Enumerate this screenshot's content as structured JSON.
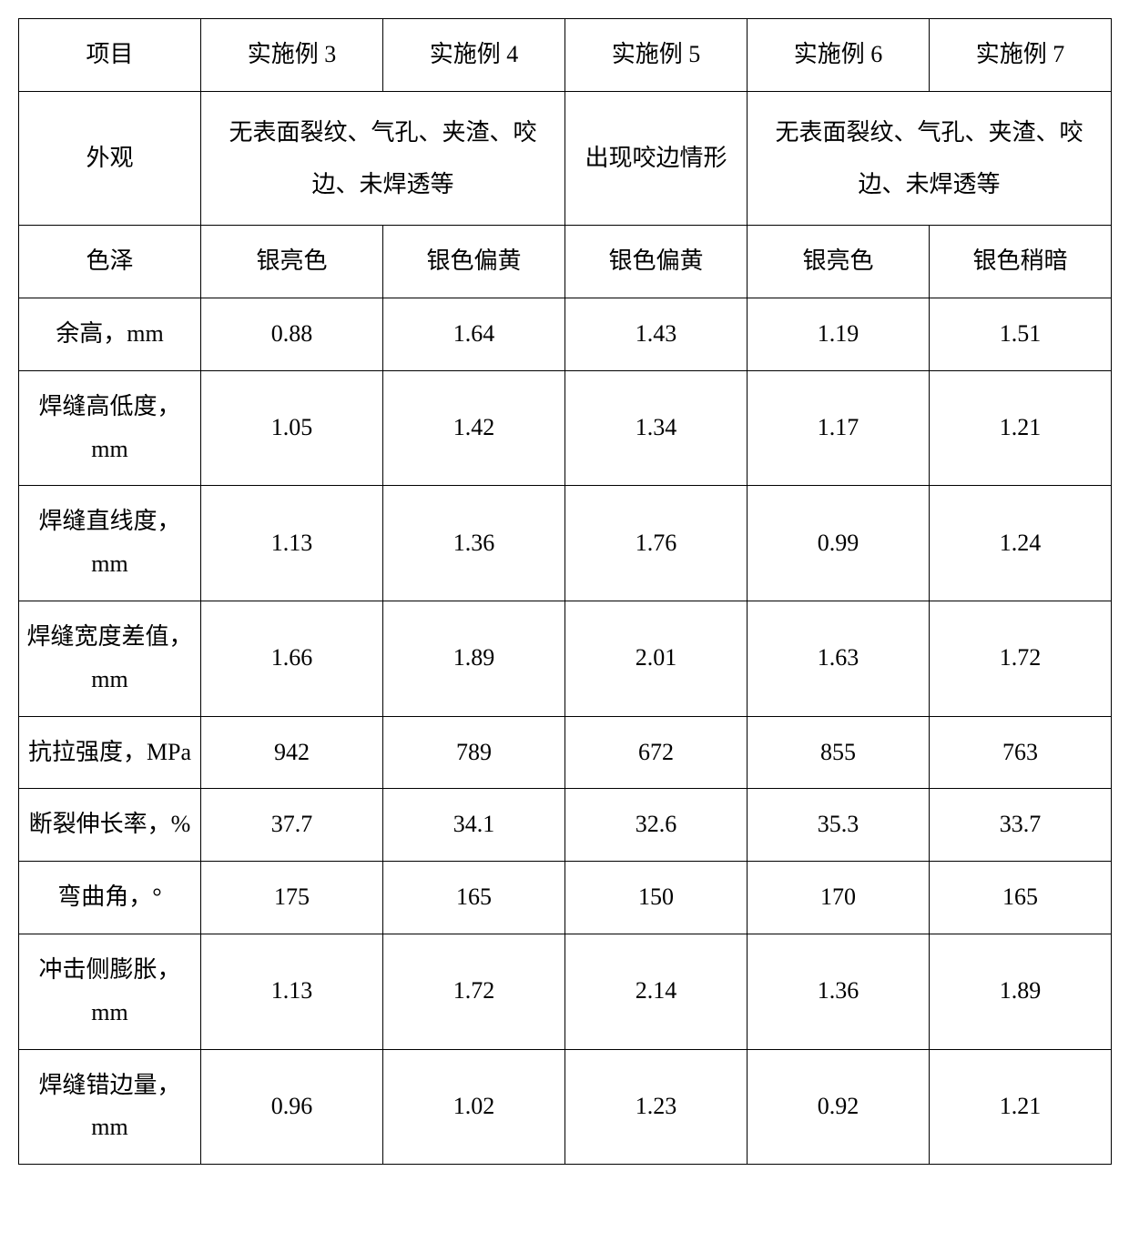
{
  "table": {
    "type": "table",
    "background_color": "#ffffff",
    "border_color": "#000000",
    "text_color": "#000000",
    "font_family": "SimSun",
    "font_size": 26,
    "cell_padding": 16,
    "line_height": 1.8,
    "headers": [
      "项目",
      "实施例 3",
      "实施例 4",
      "实施例 5",
      "实施例 6",
      "实施例 7"
    ],
    "rows": [
      {
        "label": "外观",
        "cells": [
          {
            "text": "无表面裂纹、气孔、夹渣、咬边、未焊透等",
            "colspan": 2
          },
          {
            "text": "出现咬边情形",
            "colspan": 1
          },
          {
            "text": "无表面裂纹、气孔、夹渣、咬边、未焊透等",
            "colspan": 2
          }
        ]
      },
      {
        "label": "色泽",
        "values": [
          "银亮色",
          "银色偏黄",
          "银色偏黄",
          "银亮色",
          "银色稍暗"
        ]
      },
      {
        "label": "余高，mm",
        "values": [
          "0.88",
          "1.64",
          "1.43",
          "1.19",
          "1.51"
        ]
      },
      {
        "label": "焊缝高低度，mm",
        "values": [
          "1.05",
          "1.42",
          "1.34",
          "1.17",
          "1.21"
        ]
      },
      {
        "label": "焊缝直线度，mm",
        "values": [
          "1.13",
          "1.36",
          "1.76",
          "0.99",
          "1.24"
        ]
      },
      {
        "label": "焊缝宽度差值，mm",
        "values": [
          "1.66",
          "1.89",
          "2.01",
          "1.63",
          "1.72"
        ]
      },
      {
        "label": "抗拉强度，MPa",
        "values": [
          "942",
          "789",
          "672",
          "855",
          "763"
        ]
      },
      {
        "label": "断裂伸长率，%",
        "values": [
          "37.7",
          "34.1",
          "32.6",
          "35.3",
          "33.7"
        ]
      },
      {
        "label": "弯曲角，°",
        "values": [
          "175",
          "165",
          "150",
          "170",
          "165"
        ]
      },
      {
        "label": "冲击侧膨胀，mm",
        "values": [
          "1.13",
          "1.72",
          "2.14",
          "1.36",
          "1.89"
        ]
      },
      {
        "label": "焊缝错边量，mm",
        "values": [
          "0.96",
          "1.02",
          "1.23",
          "0.92",
          "1.21"
        ]
      }
    ]
  }
}
